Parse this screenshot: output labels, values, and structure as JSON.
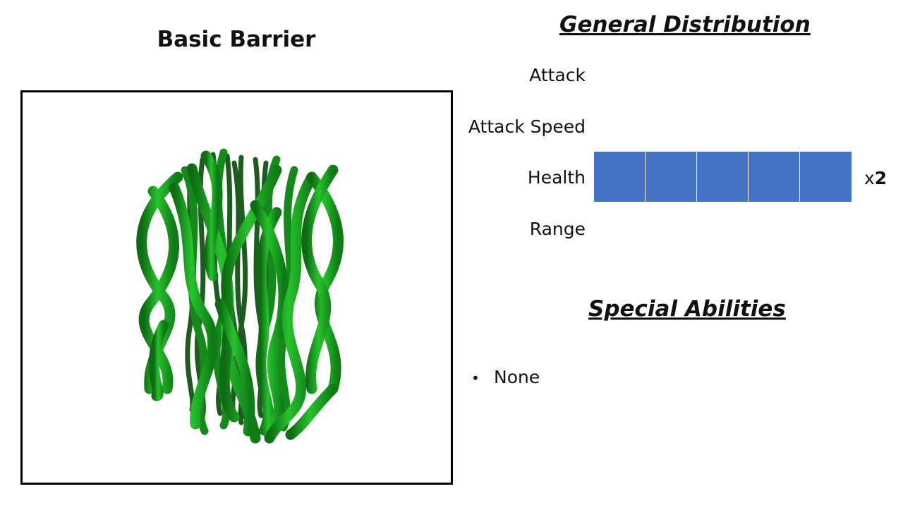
{
  "unit": {
    "title": "Basic Barrier",
    "preview_icon": "green-vine-barrier-icon"
  },
  "distribution": {
    "heading": "General Distribution",
    "bar_color": "#4472C4",
    "stats": [
      {
        "label": "Attack",
        "segments": 0,
        "multiplier_x": "",
        "multiplier_n": ""
      },
      {
        "label": "Attack Speed",
        "segments": 0,
        "multiplier_x": "",
        "multiplier_n": ""
      },
      {
        "label": "Health",
        "segments": 5,
        "multiplier_x": "x",
        "multiplier_n": "2"
      },
      {
        "label": "Range",
        "segments": 0,
        "multiplier_x": "",
        "multiplier_n": ""
      }
    ]
  },
  "abilities": {
    "heading": "Special Abilities",
    "items": [
      "None"
    ]
  }
}
